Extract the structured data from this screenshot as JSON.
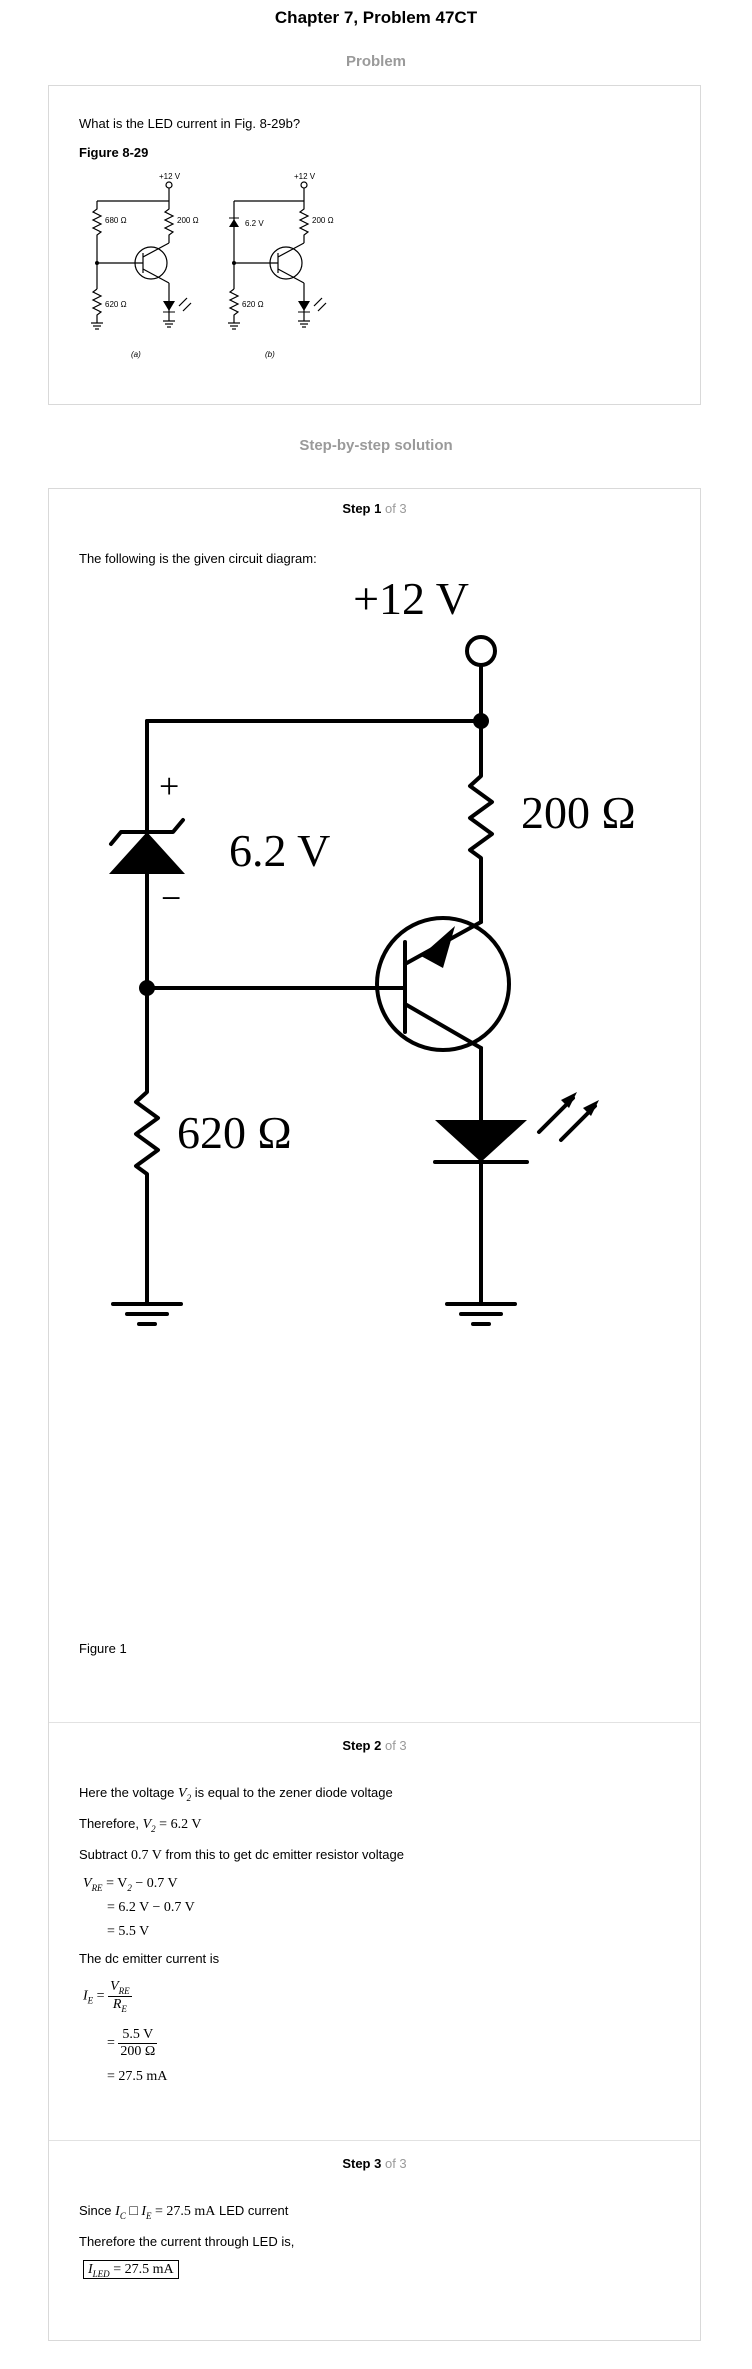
{
  "page": {
    "title": "Chapter 7, Problem 47CT"
  },
  "problem": {
    "heading": "Problem",
    "question": "What is the LED current in Fig. 8-29b?",
    "figure_label": "Figure 8-29",
    "thumb": {
      "a_supply": "+12 V",
      "a_r1": "680 Ω",
      "a_r2": "200 Ω",
      "a_r3": "620 Ω",
      "a_caption": "(a)",
      "b_supply": "+12 V",
      "b_zener": "6.2 V",
      "b_r2": "200 Ω",
      "b_r3": "620 Ω",
      "b_caption": "(b)"
    }
  },
  "solution": {
    "heading": "Step-by-step solution",
    "of_total": "of 3",
    "step1": {
      "label": "Step 1",
      "intro": "The following is the given circuit diagram:",
      "circuit": {
        "supply": "+12 V",
        "r_collector": "200 Ω",
        "zener": "6.2 V",
        "plus": "+",
        "minus": "−",
        "r_bottom": "620 Ω"
      },
      "caption": "Figure 1"
    },
    "step2": {
      "label": "Step 2",
      "line1_pre": "Here the voltage",
      "line1_var": "V",
      "line1_sub": "2",
      "line1_post": "is equal to the zener diode voltage",
      "line2_pre": "Therefore,",
      "line2_math": "= 6.2 V",
      "line3_pre": "Subtract",
      "line3_val": "0.7 V",
      "line3_post": "from this to get dc emitter resistor voltage",
      "eq1": "= V",
      "eq1b": "− 0.7 V",
      "eq2": "= 6.2 V − 0.7 V",
      "eq3": "= 5.5 V",
      "current_text": "The dc emitter current is",
      "frac_num": "5.5 V",
      "frac_den": "200 Ω",
      "result": "= 27.5 mA"
    },
    "step3": {
      "label": "Step 3",
      "line1_pre": "Since",
      "line1_math": "= 27.5 mA",
      "line1_post": "LED current",
      "line2": "Therefore the current through LED is,",
      "answer": "= 27.5 mA"
    }
  }
}
